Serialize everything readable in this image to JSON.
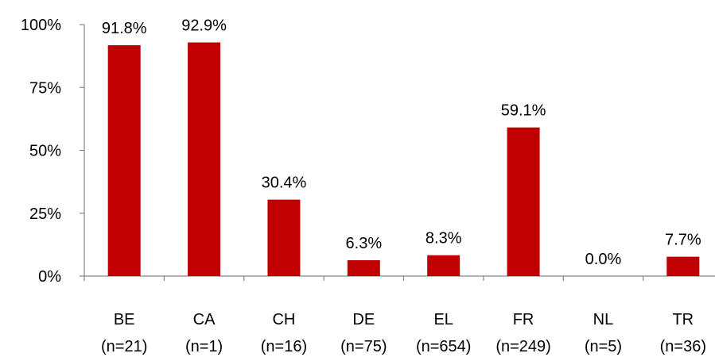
{
  "chart_data": {
    "type": "bar",
    "categories": [
      "BE",
      "CA",
      "CH",
      "DE",
      "EL",
      "FR",
      "NL",
      "TR"
    ],
    "category_counts": [
      "(n=21)",
      "(n=1)",
      "(n=16)",
      "(n=75)",
      "(n=654)",
      "(n=249)",
      "(n=5)",
      "(n=36)"
    ],
    "values": [
      91.8,
      92.9,
      30.4,
      6.3,
      8.3,
      59.1,
      0.0,
      7.7
    ],
    "data_labels": [
      "91.8%",
      "92.9%",
      "30.4%",
      "6.3%",
      "8.3%",
      "59.1%",
      "0.0%",
      "7.7%"
    ],
    "y_ticks": [
      {
        "value": 0,
        "label": "0%"
      },
      {
        "value": 25,
        "label": "25%"
      },
      {
        "value": 50,
        "label": "50%"
      },
      {
        "value": 75,
        "label": "75%"
      },
      {
        "value": 100,
        "label": "100%"
      }
    ],
    "ylim": [
      0,
      100
    ],
    "grid": false,
    "legend": "none",
    "bar_color": "#C00000",
    "axis_color": "#868686"
  }
}
